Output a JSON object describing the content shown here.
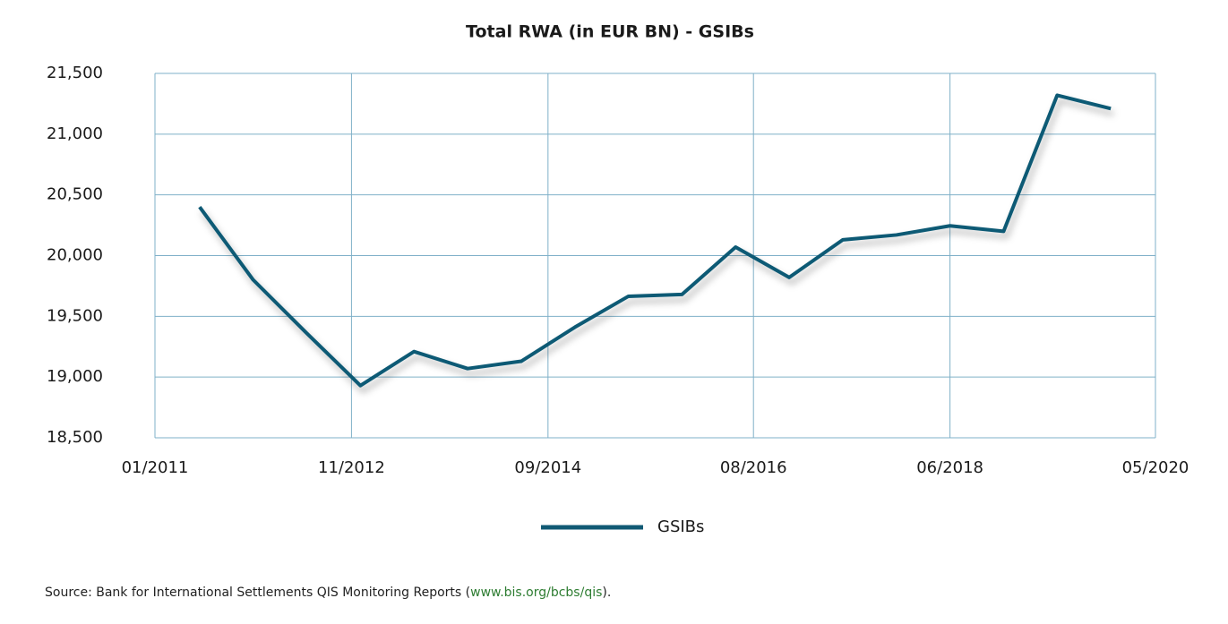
{
  "chart_data": {
    "type": "line",
    "title": "Total RWA (in EUR BN) - GSIBs",
    "x": [
      "06/2011",
      "12/2011",
      "06/2012",
      "12/2012",
      "06/2013",
      "12/2013",
      "06/2014",
      "12/2014",
      "06/2015",
      "12/2015",
      "06/2016",
      "12/2016",
      "06/2017",
      "12/2017",
      "06/2018",
      "12/2018",
      "06/2019",
      "12/2019"
    ],
    "series": [
      {
        "name": "GSIBs",
        "color": "#115a74",
        "values": [
          20400,
          19800,
          19360,
          18930,
          19210,
          19070,
          19130,
          19410,
          19665,
          19680,
          20070,
          19820,
          20130,
          20170,
          20245,
          20200,
          21320,
          21210
        ]
      }
    ],
    "xlim": [
      "01/2011",
      "05/2020"
    ],
    "xticks": [
      "01/2011",
      "11/2012",
      "09/2014",
      "08/2016",
      "06/2018",
      "05/2020"
    ],
    "ylim": [
      18500,
      21500
    ],
    "yticks": [
      {
        "value": 18500,
        "label": "18,500"
      },
      {
        "value": 19000,
        "label": "19,000"
      },
      {
        "value": 19500,
        "label": "19,500"
      },
      {
        "value": 20000,
        "label": "20,000"
      },
      {
        "value": 20500,
        "label": "20,500"
      },
      {
        "value": 21000,
        "label": "21,000"
      },
      {
        "value": 21500,
        "label": "21,500"
      }
    ],
    "grid": true,
    "legend": "bottom"
  },
  "source": {
    "prefix": "Source: Bank for International Settlements QIS Monitoring Reports (",
    "link": "www.bis.org/bcbs/qis",
    "suffix": ")."
  }
}
